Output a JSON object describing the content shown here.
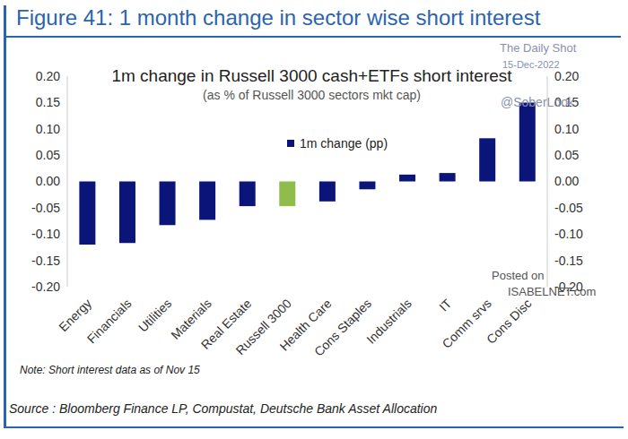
{
  "chart_data": {
    "type": "bar",
    "header": "Figure 41: 1 month change in sector wise short interest",
    "title": "1m change in Russell 3000 cash+ETFs short interest",
    "subtitle": "(as % of Russell 3000 sectors mkt cap)",
    "note": "Note: Short interest data as of Nov 15",
    "source": "Source : Bloomberg Finance LP, Compustat, Deutsche Bank Asset Allocation",
    "annotations": [
      "The Daily Shot",
      "15-Dec-2022",
      "@SoberLook",
      "Posted on",
      "ISABELNET.com"
    ],
    "categories": [
      "Energy",
      "Financials",
      "Utilities",
      "Materials",
      "Real Estate",
      "Russell 3000",
      "Health Care",
      "Cons Staples",
      "Industrials",
      "IT",
      "Comm srvs",
      "Cons Disc"
    ],
    "series": [
      {
        "name": "1m change (pp)",
        "color": "#0b1478",
        "values": [
          -0.12,
          -0.117,
          -0.083,
          -0.073,
          -0.047,
          -0.047,
          -0.038,
          -0.015,
          0.013,
          0.016,
          0.082,
          0.15
        ],
        "colors": [
          "#0b1478",
          "#0b1478",
          "#0b1478",
          "#0b1478",
          "#0b1478",
          "#8fbc4a",
          "#0b1478",
          "#0b1478",
          "#0b1478",
          "#0b1478",
          "#0b1478",
          "#0b1478"
        ]
      }
    ],
    "ylim": [
      -0.2,
      0.2
    ],
    "yticks": [
      {
        "value": -0.2,
        "label": "-0.20"
      },
      {
        "value": -0.15,
        "label": "-0.15"
      },
      {
        "value": -0.1,
        "label": "-0.10"
      },
      {
        "value": -0.05,
        "label": "-0.05"
      },
      {
        "value": 0,
        "label": "0.00"
      },
      {
        "value": 0.05,
        "label": "0.05"
      },
      {
        "value": 0.1,
        "label": "0.10"
      },
      {
        "value": 0.15,
        "label": "0.15"
      },
      {
        "value": 0.2,
        "label": "0.20"
      }
    ],
    "y2lim": [
      -0.2,
      0.2
    ],
    "y2ticks": [
      {
        "value": -0.2,
        "label": "-0.20"
      },
      {
        "value": -0.15,
        "label": "-0.15"
      },
      {
        "value": -0.1,
        "label": "-0.10"
      },
      {
        "value": -0.05,
        "label": "-0.05"
      },
      {
        "value": 0,
        "label": "0.00"
      },
      {
        "value": 0.05,
        "label": "0.05"
      },
      {
        "value": 0.1,
        "label": "0.10"
      },
      {
        "value": 0.15,
        "label": "0.15"
      },
      {
        "value": 0.2,
        "label": "0.20"
      }
    ],
    "grid": false,
    "legend": "top"
  }
}
